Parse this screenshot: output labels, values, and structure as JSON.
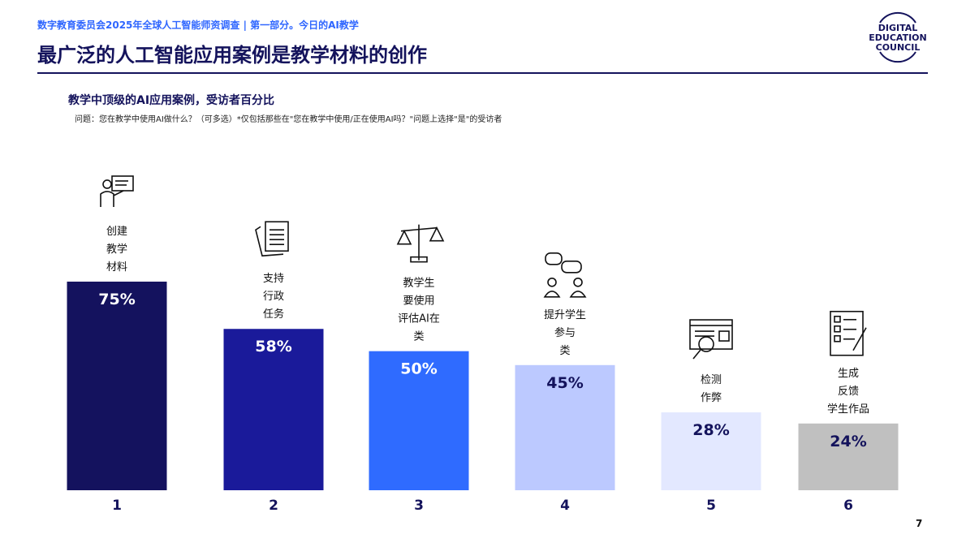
{
  "header": {
    "breadcrumb": "数字教育委员会2025年全球人工智能师资调查 | 第一部分。今日的AI教学",
    "title": "最广泛的人工智能应用案例是教学材料的创作"
  },
  "logo": {
    "lines": [
      "DIGITAL",
      "EDUCATION",
      "COUNCIL"
    ]
  },
  "chart_data": {
    "type": "bar",
    "title": "教学中顶级的AI应用案例，受访者百分比",
    "subtitle": "问题：您在教学中使用AI做什么？（可多选）*仅包括那些在\"您在教学中使用/正在使用AI吗？\"问题上选择\"是\"的受访者",
    "categories": [
      "1",
      "2",
      "3",
      "4",
      "5",
      "6"
    ],
    "values": [
      75,
      58,
      50,
      45,
      28,
      24
    ],
    "value_labels": [
      "75%",
      "58%",
      "50%",
      "45%",
      "28%",
      "24%"
    ],
    "category_labels": [
      [
        "创建",
        "教学",
        "材料"
      ],
      [
        "支持",
        "行政",
        "任务"
      ],
      [
        "教学生",
        "要使用",
        "评估AI在",
        "类"
      ],
      [
        "提升学生",
        "参与",
        "类"
      ],
      [
        "检测",
        "作弊"
      ],
      [
        "生成",
        "反馈",
        "学生作品"
      ]
    ],
    "icons": [
      "presenter-icon",
      "documents-icon",
      "scales-icon",
      "discussion-icon",
      "inspect-icon",
      "checklist-icon"
    ],
    "colors": [
      "#14125e",
      "#1a1a9a",
      "#2f6bff",
      "#bcc9ff",
      "#e3e8ff",
      "#c0c0c0"
    ],
    "label_colors": [
      "#ffffff",
      "#ffffff",
      "#ffffff",
      "#14135c",
      "#14135c",
      "#14135c"
    ],
    "ylim": [
      0,
      100
    ],
    "xlabel": "",
    "ylabel": "",
    "grid": false
  },
  "footer": {
    "page_number": "7"
  }
}
